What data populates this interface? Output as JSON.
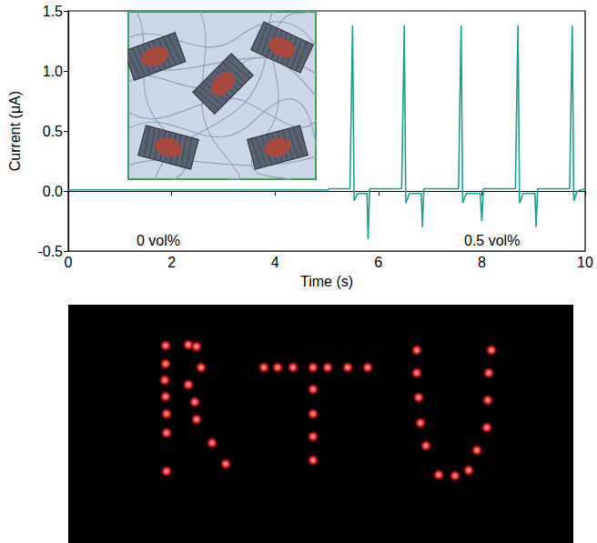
{
  "chart_data": {
    "type": "line",
    "x_label": "Time (s)",
    "y_label": "Current (μA)",
    "x": [
      0,
      1,
      2,
      3,
      4,
      4.99,
      5.0,
      5.05,
      5.45,
      5.5,
      5.53,
      5.6,
      5.78,
      5.8,
      5.83,
      6.45,
      6.5,
      6.53,
      6.6,
      6.83,
      6.85,
      6.88,
      7.55,
      7.6,
      7.63,
      7.7,
      7.97,
      8.0,
      8.03,
      8.65,
      8.7,
      8.73,
      8.8,
      9.03,
      9.05,
      9.08,
      9.7,
      9.75,
      9.78,
      9.85,
      10
    ],
    "values": [
      0.01,
      0.01,
      0.01,
      0.01,
      0.01,
      0.01,
      0.0,
      0.02,
      0.02,
      1.38,
      -0.08,
      -0.02,
      -0.02,
      -0.4,
      0.02,
      0.02,
      1.38,
      -0.1,
      -0.02,
      -0.02,
      -0.3,
      0.02,
      0.02,
      1.38,
      -0.1,
      -0.02,
      -0.02,
      -0.25,
      0.02,
      0.02,
      1.38,
      -0.1,
      -0.02,
      -0.02,
      -0.3,
      0.02,
      0.02,
      1.38,
      -0.08,
      0.0,
      0.02
    ],
    "color": "#1e9e8e",
    "xlim": [
      0,
      10
    ],
    "xticks": [
      0,
      2,
      4,
      6,
      8,
      10
    ],
    "ylim": [
      -0.5,
      1.5
    ],
    "yticks": [
      -0.5,
      {
        "value": 0,
        "label": "0.0"
      },
      0.5,
      {
        "value": 1,
        "label": "1.0"
      },
      1.5
    ],
    "annotations": [
      "0 vol%",
      "0.5 vol%"
    ],
    "grid": false
  }
}
